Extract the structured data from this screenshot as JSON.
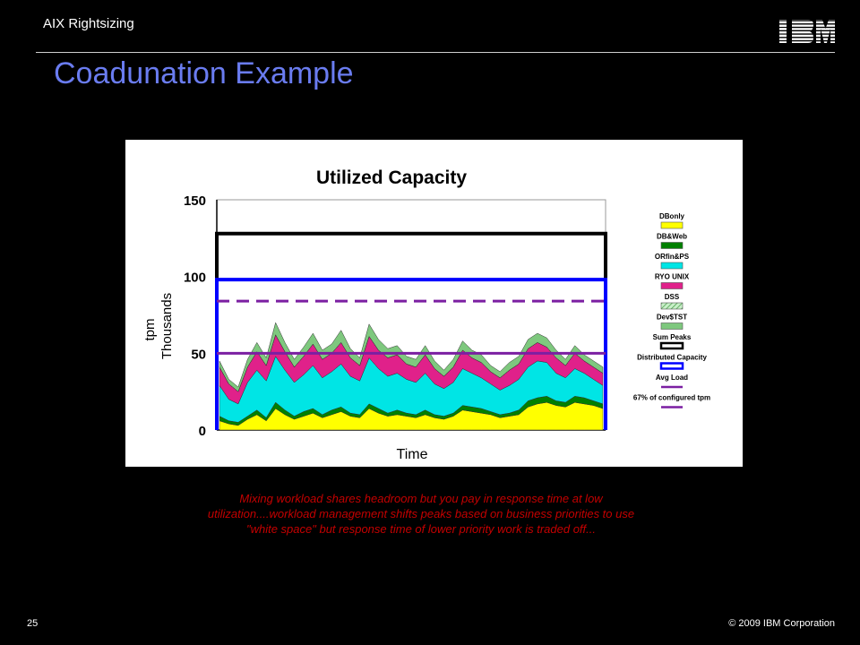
{
  "header": {
    "section": "AIX Rightsizing",
    "logo": "IBM"
  },
  "slide": {
    "title": "Coadunation Example"
  },
  "caption": {
    "line1": "Mixing workload shares headroom but you pay in response time at low",
    "line2": "utilization....workload management shifts peaks based on business priorities to use",
    "line3": "\"white space\" but response time of lower priority work is traded off..."
  },
  "footer": {
    "page_number": "25",
    "copyright": "© 2009 IBM Corporation"
  },
  "chart_data": {
    "type": "area",
    "title": "Utilized Capacity",
    "xlabel": "Time",
    "ylabel_line1": "tpm",
    "ylabel_line2": "Thousands",
    "ylim": [
      0,
      150
    ],
    "yticks": [
      "150",
      "100",
      "50",
      "0"
    ],
    "ytick_values": [
      150,
      100,
      50,
      0
    ],
    "grid": false,
    "legend_position": "right",
    "stack_order": [
      "DBonly",
      "DB&Web",
      "ORfin&PS",
      "RYO UNIX",
      "DSS",
      "Dev$TST"
    ],
    "series": [
      {
        "name": "DBonly",
        "color": "#ffff00",
        "values": [
          6,
          4,
          3,
          7,
          10,
          6,
          14,
          10,
          7,
          9,
          11,
          8,
          10,
          12,
          9,
          8,
          14,
          11,
          9,
          10,
          9,
          8,
          10,
          8,
          7,
          9,
          13,
          12,
          11,
          10,
          8,
          9,
          10,
          15,
          17,
          18,
          16,
          15,
          18,
          17,
          16,
          14
        ]
      },
      {
        "name": "DB&Web",
        "color": "#008000",
        "values": [
          3,
          2,
          2,
          2,
          3,
          2,
          4,
          3,
          2,
          3,
          3,
          2,
          3,
          3,
          2,
          2,
          3,
          3,
          2,
          3,
          2,
          2,
          3,
          2,
          2,
          2,
          3,
          3,
          3,
          2,
          2,
          2,
          3,
          4,
          4,
          4,
          3,
          3,
          4,
          4,
          3,
          3
        ]
      },
      {
        "name": "ORfin&PS",
        "color": "#00e5e5",
        "values": [
          20,
          14,
          12,
          22,
          26,
          24,
          30,
          26,
          22,
          24,
          28,
          24,
          25,
          28,
          24,
          22,
          30,
          26,
          24,
          24,
          22,
          21,
          24,
          20,
          18,
          20,
          24,
          22,
          20,
          18,
          16,
          18,
          20,
          22,
          24,
          22,
          18,
          16,
          18,
          16,
          14,
          12
        ]
      },
      {
        "name": "RYO UNIX",
        "color": "#e0218a",
        "values": [
          12,
          10,
          8,
          10,
          12,
          10,
          14,
          12,
          10,
          12,
          14,
          12,
          12,
          14,
          12,
          10,
          14,
          12,
          12,
          12,
          10,
          10,
          12,
          10,
          8,
          10,
          12,
          10,
          10,
          8,
          8,
          10,
          10,
          12,
          12,
          10,
          10,
          8,
          10,
          8,
          8,
          8
        ]
      },
      {
        "name": "DSS",
        "color": "#7fbf7f",
        "values": [
          0,
          0,
          0,
          0,
          0,
          0,
          0,
          0,
          0,
          0,
          0,
          0,
          0,
          0,
          0,
          0,
          0,
          0,
          0,
          0,
          0,
          0,
          0,
          0,
          0,
          0,
          0,
          0,
          0,
          0,
          0,
          0,
          0,
          0,
          0,
          0,
          0,
          0,
          0,
          0,
          0,
          0
        ]
      },
      {
        "name": "Dev$TST",
        "color": "#7ec87e",
        "values": [
          4,
          3,
          3,
          5,
          6,
          5,
          8,
          6,
          5,
          6,
          7,
          6,
          6,
          8,
          6,
          5,
          8,
          7,
          6,
          6,
          5,
          5,
          6,
          5,
          4,
          5,
          6,
          5,
          5,
          4,
          4,
          5,
          5,
          6,
          6,
          6,
          5,
          4,
          5,
          4,
          4,
          4
        ]
      }
    ],
    "reference_lines": [
      {
        "name": "Sum Peaks",
        "value": 128,
        "color": "#000000",
        "style": "solid"
      },
      {
        "name": "Distributed Capacity",
        "value": 98,
        "color": "#0000ff",
        "style": "solid"
      },
      {
        "name": "67% of configured tpm",
        "value": 84,
        "color": "#7b1fa2",
        "style": "dashed"
      },
      {
        "name": "Avg Load",
        "value": 50,
        "color": "#7b1fa2",
        "style": "solid"
      }
    ],
    "legend": [
      {
        "label": "DBonly",
        "color": "#ffff00",
        "kind": "box"
      },
      {
        "label": "DB&Web",
        "color": "#008000",
        "kind": "box"
      },
      {
        "label": "ORfin&PS",
        "color": "#00e5e5",
        "kind": "box"
      },
      {
        "label": "RYO UNIX",
        "color": "#e0218a",
        "kind": "box"
      },
      {
        "label": "DSS",
        "color": "#a8e0a8",
        "kind": "hatch"
      },
      {
        "label": "Dev$TST",
        "color": "#7ec87e",
        "kind": "box"
      },
      {
        "label": "Sum Peaks",
        "color": "#000000",
        "kind": "outline"
      },
      {
        "label": "Distributed Capacity",
        "color": "#0000ff",
        "kind": "outline"
      },
      {
        "label": "Avg Load",
        "color": "#7b1fa2",
        "kind": "line"
      },
      {
        "label": "67% of configured tpm",
        "color": "#7b1fa2",
        "kind": "line"
      }
    ]
  }
}
